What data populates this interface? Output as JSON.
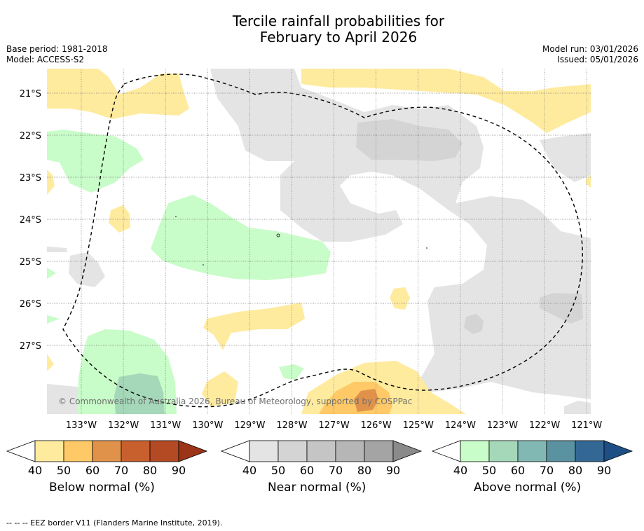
{
  "title": {
    "line1": "Tercile rainfall probabilities for",
    "line2": "February to April 2026"
  },
  "meta_left": {
    "base_period": "Base period: 1981-2018",
    "model": "Model: ACCESS-S2"
  },
  "meta_right": {
    "model_run": "Model run: 03/01/2026",
    "issued": "Issued: 05/01/2026"
  },
  "map": {
    "lat_labels": [
      "21°S",
      "22°S",
      "23°S",
      "24°S",
      "25°S",
      "26°S",
      "27°S"
    ],
    "lon_labels": [
      "133°W",
      "132°W",
      "131°W",
      "130°W",
      "129°W",
      "128°W",
      "127°W",
      "126°W",
      "125°W",
      "124°W",
      "123°W",
      "122°W",
      "121°W"
    ],
    "attribution": "© Commonwealth of Australia 2026, Bureau of Meteorology, supported by COSPPac",
    "colors": {
      "below_40": "#feeb9e",
      "below_50": "#fec966",
      "below_60": "#e0924a",
      "near_40": "#e4e4e4",
      "near_50": "#d4d4d4",
      "above_40": "#c8fcc8",
      "above_50": "#a4d8b8"
    }
  },
  "colorbars": {
    "ticks": [
      "40",
      "50",
      "60",
      "70",
      "80",
      "90"
    ],
    "below": {
      "label": "Below normal (%)",
      "colors": [
        "#feeb9e",
        "#fec966",
        "#e0924a",
        "#c8602e",
        "#b34a24",
        "#9c3418"
      ]
    },
    "near": {
      "label": "Near normal (%)",
      "colors": [
        "#e4e4e4",
        "#d4d4d4",
        "#c5c5c5",
        "#b6b6b6",
        "#a4a4a4",
        "#8a8a8a"
      ]
    },
    "above": {
      "label": "Above normal (%)",
      "colors": [
        "#c8fcc8",
        "#a4d8b8",
        "#82b8b4",
        "#5a92a2",
        "#336894",
        "#1d4e84"
      ]
    }
  },
  "footer": "--  --  -- EEZ border V11 (Flanders Marine Institute, 2019)."
}
